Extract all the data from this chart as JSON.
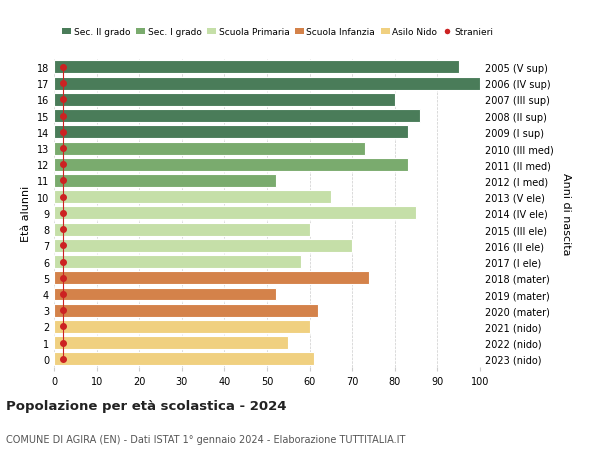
{
  "ages": [
    18,
    17,
    16,
    15,
    14,
    13,
    12,
    11,
    10,
    9,
    8,
    7,
    6,
    5,
    4,
    3,
    2,
    1,
    0
  ],
  "years": [
    "2005 (V sup)",
    "2006 (IV sup)",
    "2007 (III sup)",
    "2008 (II sup)",
    "2009 (I sup)",
    "2010 (III med)",
    "2011 (II med)",
    "2012 (I med)",
    "2013 (V ele)",
    "2014 (IV ele)",
    "2015 (III ele)",
    "2016 (II ele)",
    "2017 (I ele)",
    "2018 (mater)",
    "2019 (mater)",
    "2020 (mater)",
    "2021 (nido)",
    "2022 (nido)",
    "2023 (nido)"
  ],
  "values": [
    95,
    100,
    80,
    86,
    83,
    73,
    83,
    52,
    65,
    85,
    60,
    70,
    58,
    74,
    52,
    62,
    60,
    55,
    61
  ],
  "stranieri_x": [
    2,
    2,
    2,
    2,
    2,
    2,
    2,
    2,
    2,
    2,
    2,
    2,
    2,
    2,
    2,
    2,
    2,
    2,
    2
  ],
  "bar_colors_by_age": {
    "18": "#4a7c59",
    "17": "#4a7c59",
    "16": "#4a7c59",
    "15": "#4a7c59",
    "14": "#4a7c59",
    "13": "#7aab6e",
    "12": "#7aab6e",
    "11": "#7aab6e",
    "10": "#c5dfa8",
    "9": "#c5dfa8",
    "8": "#c5dfa8",
    "7": "#c5dfa8",
    "6": "#c5dfa8",
    "5": "#d4824a",
    "4": "#d4824a",
    "3": "#d4824a",
    "2": "#f0d080",
    "1": "#f0d080",
    "0": "#f0d080"
  },
  "stranieri_color": "#cc2222",
  "xlim": [
    0,
    100
  ],
  "ylabel": "Età alunni",
  "right_label": "Anni di nascita",
  "title": "Popolazione per età scolastica - 2024",
  "subtitle": "COMUNE DI AGIRA (EN) - Dati ISTAT 1° gennaio 2024 - Elaborazione TUTTITALIA.IT",
  "legend_labels": [
    "Sec. II grado",
    "Sec. I grado",
    "Scuola Primaria",
    "Scuola Infanzia",
    "Asilo Nido",
    "Stranieri"
  ],
  "legend_colors": [
    "#4a7c59",
    "#7aab6e",
    "#c5dfa8",
    "#d4824a",
    "#f0d080",
    "#cc2222"
  ],
  "bg_color": "#ffffff",
  "grid_color": "#cccccc",
  "bar_height": 0.8
}
